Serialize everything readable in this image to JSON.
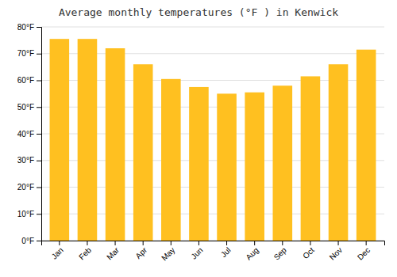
{
  "chart_data": {
    "type": "bar",
    "title": "Average monthly temperatures (°F ) in Kenwick",
    "categories": [
      "Jan",
      "Feb",
      "Mar",
      "Apr",
      "May",
      "Jun",
      "Jul",
      "Aug",
      "Sep",
      "Oct",
      "Nov",
      "Dec"
    ],
    "values": [
      75.5,
      75.5,
      72,
      66,
      60.5,
      57.5,
      55,
      55.5,
      58,
      61.5,
      66,
      71.5
    ],
    "color": "#FFC020",
    "ylim": [
      0,
      80
    ],
    "yticks": [
      {
        "value": 0,
        "label": "0°F"
      },
      {
        "value": 10,
        "label": "10°F"
      },
      {
        "value": 20,
        "label": "20°F"
      },
      {
        "value": 30,
        "label": "30°F"
      },
      {
        "value": 40,
        "label": "40°F"
      },
      {
        "value": 50,
        "label": "50°F"
      },
      {
        "value": 60,
        "label": "60°F"
      },
      {
        "value": 70,
        "label": "70°F"
      },
      {
        "value": 80,
        "label": "80°F"
      }
    ],
    "grid": true
  }
}
